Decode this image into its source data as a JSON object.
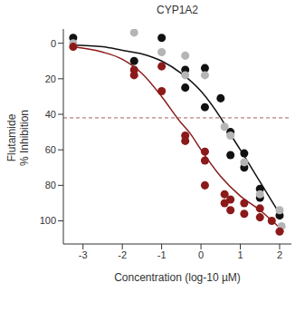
{
  "chart_data": {
    "type": "scatter",
    "title": "CYP1A2",
    "x_label": "Concentration (log-10 µM)",
    "y_label": "Flutamide\n% Inhibition",
    "xlim": [
      -3.5,
      2.3
    ],
    "xticks": [
      -3,
      -2,
      -1,
      0,
      1,
      2
    ],
    "ylim": [
      113,
      -8
    ],
    "yticks": [
      0,
      20,
      40,
      60,
      80,
      100
    ],
    "threshold": 42,
    "series": [
      {
        "type": "scatter",
        "color": "#111111",
        "marker": "circle",
        "x": [
          -3.25,
          -1.7,
          -1,
          -0.4,
          -0.4,
          0.1,
          0.1,
          0.5,
          0.75,
          0.75,
          1.1,
          1.1,
          1.5,
          1.5,
          2.0
        ],
        "values": [
          -3,
          10,
          -3,
          15,
          25,
          14,
          36,
          31,
          50,
          63,
          62,
          70,
          82,
          87,
          97
        ]
      },
      {
        "type": "scatter",
        "color": "#b5b5b5",
        "marker": "circle",
        "x": [
          -3.25,
          -1.7,
          -1,
          -0.4,
          -0.4,
          0.1,
          0.6,
          0.75,
          1.1,
          1.5,
          2.0,
          2.05
        ],
        "values": [
          0,
          -6,
          5,
          7,
          18,
          18,
          47,
          52,
          67,
          85,
          94,
          103
        ]
      },
      {
        "type": "scatter",
        "color": "#8b1a1a",
        "marker": "circle",
        "x": [
          -3.25,
          -1.7,
          -1.7,
          -1,
          -1,
          -0.4,
          -0.4,
          0.1,
          0.1,
          0.1,
          0.6,
          0.6,
          0.75,
          0.75,
          1.1,
          1.1,
          1.5,
          1.5,
          1.8,
          2.0
        ],
        "values": [
          2,
          15,
          18,
          13,
          27,
          52,
          55,
          61,
          66,
          80,
          85,
          90,
          88,
          94,
          90,
          96,
          93,
          98,
          100,
          106
        ]
      },
      {
        "type": "line",
        "color": "#111111",
        "x": [
          -3.3,
          -2.5,
          -2,
          -1.5,
          -1,
          -0.5,
          0,
          0.5,
          0.8,
          1,
          1.5,
          2
        ],
        "values": [
          1,
          2,
          4,
          6,
          10,
          17,
          27,
          42,
          53,
          60,
          78,
          96
        ]
      },
      {
        "type": "line",
        "color": "#8b1a1a",
        "x": [
          -3.3,
          -2.5,
          -2,
          -1.5,
          -1,
          -0.5,
          -0.3,
          0,
          0.5,
          1,
          1.5,
          2.1
        ],
        "values": [
          2,
          5,
          9,
          17,
          30,
          45,
          50,
          60,
          75,
          86,
          94,
          106
        ]
      }
    ]
  }
}
